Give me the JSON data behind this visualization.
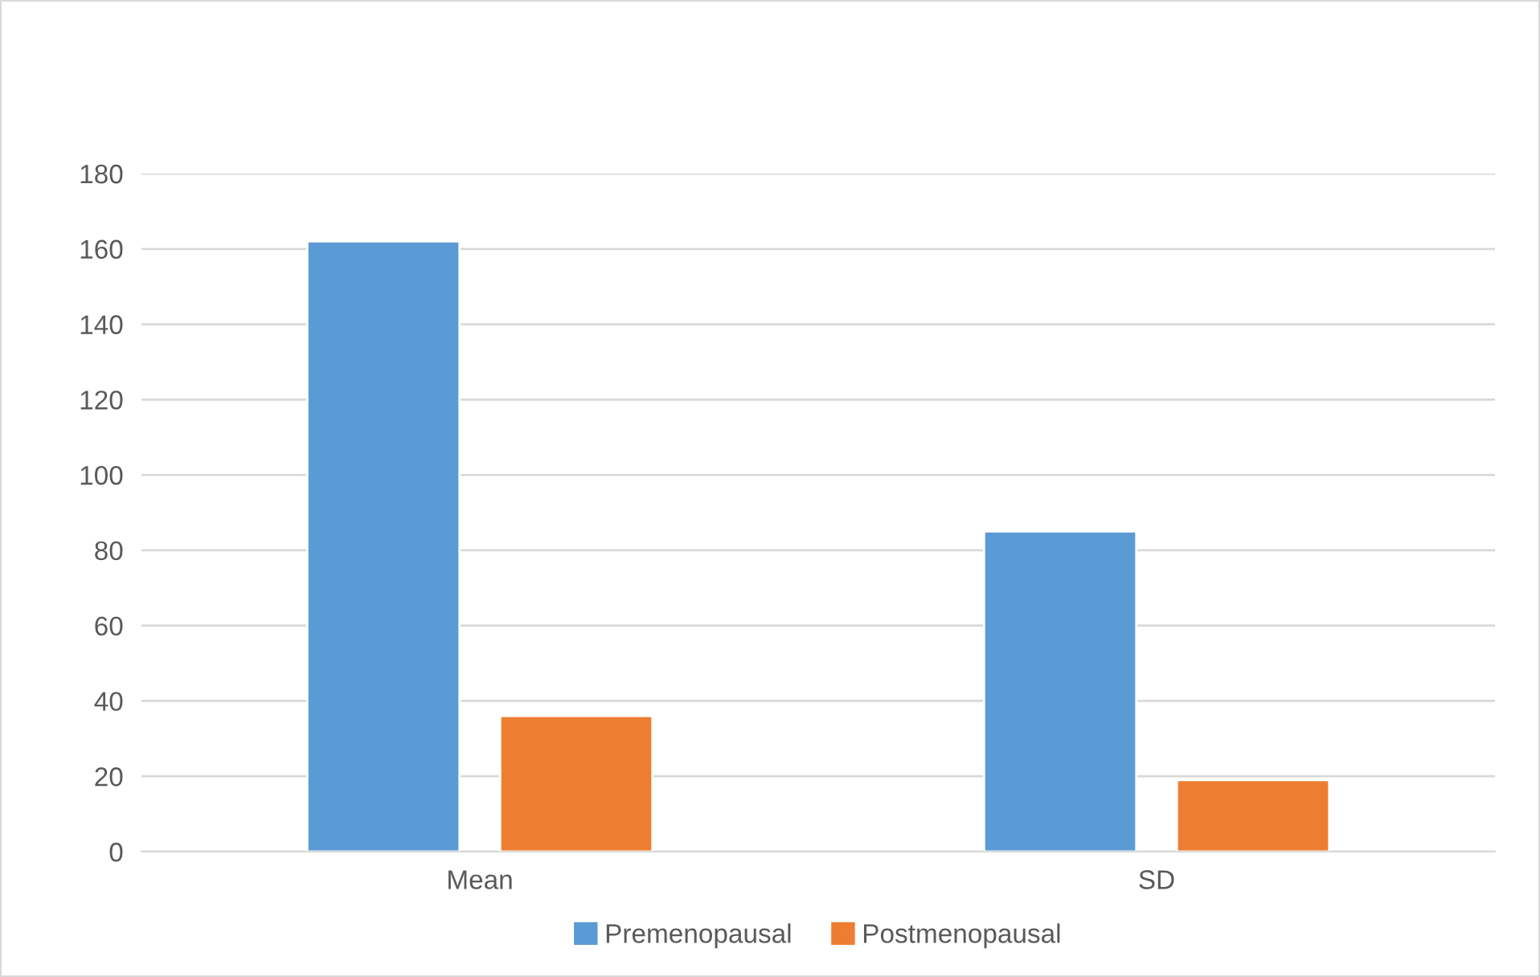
{
  "chart_data": {
    "type": "bar",
    "categories": [
      "Mean",
      "SD"
    ],
    "series": [
      {
        "name": "Premenopausal",
        "color": "#5b9bd5",
        "values": [
          162,
          85
        ]
      },
      {
        "name": "Postmenopausal",
        "color": "#ed7d31",
        "values": [
          36,
          19
        ]
      }
    ],
    "ylim": [
      0,
      180
    ],
    "yticks": [
      0,
      20,
      40,
      60,
      80,
      100,
      120,
      140,
      160,
      180
    ],
    "grid": "y",
    "legend": "bottom"
  }
}
